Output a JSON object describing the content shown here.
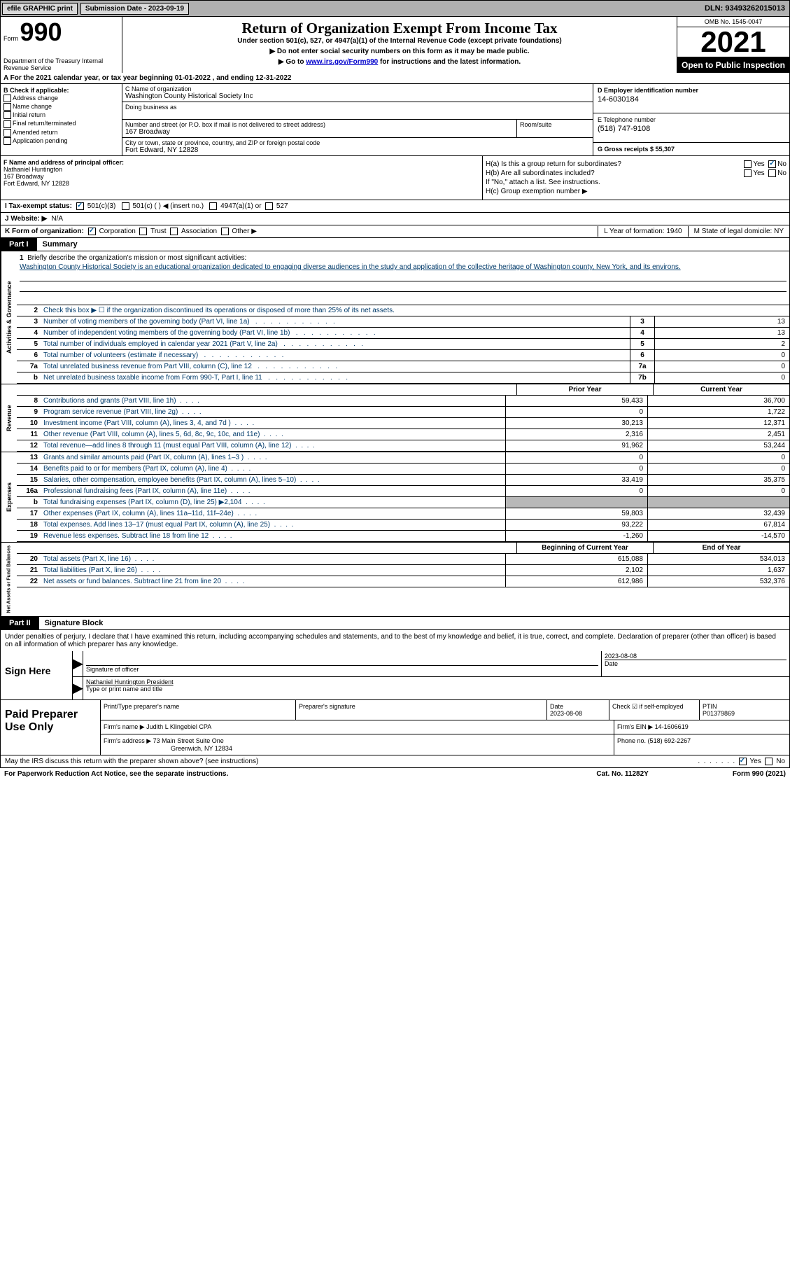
{
  "topbar": {
    "efile": "efile GRAPHIC print",
    "submission_label": "Submission Date - 2023-09-19",
    "dln_label": "DLN: 93493262015013"
  },
  "header": {
    "form_label": "Form",
    "form_number": "990",
    "dept": "Department of the Treasury Internal Revenue Service",
    "title": "Return of Organization Exempt From Income Tax",
    "subtitle": "Under section 501(c), 527, or 4947(a)(1) of the Internal Revenue Code (except private foundations)",
    "note1": "▶ Do not enter social security numbers on this form as it may be made public.",
    "note2_pre": "▶ Go to ",
    "note2_link": "www.irs.gov/Form990",
    "note2_post": " for instructions and the latest information.",
    "omb": "OMB No. 1545-0047",
    "year": "2021",
    "open": "Open to Public Inspection"
  },
  "row_a": "A For the 2021 calendar year, or tax year beginning 01-01-2022   , and ending 12-31-2022",
  "col_b": {
    "title": "B Check if applicable:",
    "items": [
      "Address change",
      "Name change",
      "Initial return",
      "Final return/terminated",
      "Amended return",
      "Application pending"
    ]
  },
  "col_c": {
    "name_label": "C Name of organization",
    "name": "Washington County Historical Society Inc",
    "dba_label": "Doing business as",
    "addr_label": "Number and street (or P.O. box if mail is not delivered to street address)",
    "room_label": "Room/suite",
    "addr": "167 Broadway",
    "city_label": "City or town, state or province, country, and ZIP or foreign postal code",
    "city": "Fort Edward, NY  12828"
  },
  "col_de": {
    "d_label": "D Employer identification number",
    "d_val": "14-6030184",
    "e_label": "E Telephone number",
    "e_val": "(518) 747-9108",
    "g_label": "G Gross receipts $ 55,307"
  },
  "col_f": {
    "label": "F  Name and address of principal officer:",
    "name": "Nathaniel Huntington",
    "addr1": "167 Broadway",
    "addr2": "Fort Edward, NY  12828"
  },
  "col_h": {
    "a": "H(a)  Is this a group return for subordinates?",
    "b": "H(b)  Are all subordinates included?",
    "b_note": "If \"No,\" attach a list. See instructions.",
    "c": "H(c)  Group exemption number ▶"
  },
  "row_i": {
    "label": "I  Tax-exempt status:",
    "o1": "501(c)(3)",
    "o2": "501(c) (  ) ◀ (insert no.)",
    "o3": "4947(a)(1) or",
    "o4": "527"
  },
  "row_j": {
    "label": "J  Website: ▶",
    "val": "N/A"
  },
  "row_k": {
    "label": "K Form of organization:",
    "o1": "Corporation",
    "o2": "Trust",
    "o3": "Association",
    "o4": "Other ▶",
    "l": "L Year of formation: 1940",
    "m": "M State of legal domicile: NY"
  },
  "part1": {
    "tab": "Part I",
    "title": "Summary"
  },
  "mission": {
    "num": "1",
    "label": "Briefly describe the organization's mission or most significant activities:",
    "text": "Washington County Historical Society is an educational organization dedicated to engaging diverse audiences in the study and application of the collective heritage of Washington county, New York, and its environs."
  },
  "line2": {
    "num": "2",
    "text": "Check this box ▶ ☐  if the organization discontinued its operations or disposed of more than 25% of its net assets."
  },
  "gov_rows": [
    {
      "n": "3",
      "d": "Number of voting members of the governing body (Part VI, line 1a)",
      "b": "3",
      "v": "13"
    },
    {
      "n": "4",
      "d": "Number of independent voting members of the governing body (Part VI, line 1b)",
      "b": "4",
      "v": "13"
    },
    {
      "n": "5",
      "d": "Total number of individuals employed in calendar year 2021 (Part V, line 2a)",
      "b": "5",
      "v": "2"
    },
    {
      "n": "6",
      "d": "Total number of volunteers (estimate if necessary)",
      "b": "6",
      "v": "0"
    },
    {
      "n": "7a",
      "d": "Total unrelated business revenue from Part VIII, column (C), line 12",
      "b": "7a",
      "v": "0"
    },
    {
      "n": "b",
      "d": "Net unrelated business taxable income from Form 990-T, Part I, line 11",
      "b": "7b",
      "v": "0"
    }
  ],
  "py_cy_header": {
    "py": "Prior Year",
    "cy": "Current Year"
  },
  "revenue_rows": [
    {
      "n": "8",
      "d": "Contributions and grants (Part VIII, line 1h)",
      "py": "59,433",
      "cy": "36,700"
    },
    {
      "n": "9",
      "d": "Program service revenue (Part VIII, line 2g)",
      "py": "0",
      "cy": "1,722"
    },
    {
      "n": "10",
      "d": "Investment income (Part VIII, column (A), lines 3, 4, and 7d )",
      "py": "30,213",
      "cy": "12,371"
    },
    {
      "n": "11",
      "d": "Other revenue (Part VIII, column (A), lines 5, 6d, 8c, 9c, 10c, and 11e)",
      "py": "2,316",
      "cy": "2,451"
    },
    {
      "n": "12",
      "d": "Total revenue—add lines 8 through 11 (must equal Part VIII, column (A), line 12)",
      "py": "91,962",
      "cy": "53,244"
    }
  ],
  "expense_rows": [
    {
      "n": "13",
      "d": "Grants and similar amounts paid (Part IX, column (A), lines 1–3 )",
      "py": "0",
      "cy": "0"
    },
    {
      "n": "14",
      "d": "Benefits paid to or for members (Part IX, column (A), line 4)",
      "py": "0",
      "cy": "0"
    },
    {
      "n": "15",
      "d": "Salaries, other compensation, employee benefits (Part IX, column (A), lines 5–10)",
      "py": "33,419",
      "cy": "35,375"
    },
    {
      "n": "16a",
      "d": "Professional fundraising fees (Part IX, column (A), line 11e)",
      "py": "0",
      "cy": "0"
    },
    {
      "n": "b",
      "d": "Total fundraising expenses (Part IX, column (D), line 25) ▶2,104",
      "py": "",
      "cy": "",
      "shade": true
    },
    {
      "n": "17",
      "d": "Other expenses (Part IX, column (A), lines 11a–11d, 11f–24e)",
      "py": "59,803",
      "cy": "32,439"
    },
    {
      "n": "18",
      "d": "Total expenses. Add lines 13–17 (must equal Part IX, column (A), line 25)",
      "py": "93,222",
      "cy": "67,814"
    },
    {
      "n": "19",
      "d": "Revenue less expenses. Subtract line 18 from line 12",
      "py": "-1,260",
      "cy": "-14,570"
    }
  ],
  "na_header": {
    "py": "Beginning of Current Year",
    "cy": "End of Year"
  },
  "na_rows": [
    {
      "n": "20",
      "d": "Total assets (Part X, line 16)",
      "py": "615,088",
      "cy": "534,013"
    },
    {
      "n": "21",
      "d": "Total liabilities (Part X, line 26)",
      "py": "2,102",
      "cy": "1,637"
    },
    {
      "n": "22",
      "d": "Net assets or fund balances. Subtract line 21 from line 20",
      "py": "612,986",
      "cy": "532,376"
    }
  ],
  "vert": {
    "gov": "Activities & Governance",
    "rev": "Revenue",
    "exp": "Expenses",
    "na": "Net Assets or Fund Balances"
  },
  "part2": {
    "tab": "Part II",
    "title": "Signature Block"
  },
  "sig_text": "Under penalties of perjury, I declare that I have examined this return, including accompanying schedules and statements, and to the best of my knowledge and belief, it is true, correct, and complete. Declaration of preparer (other than officer) is based on all information of which preparer has any knowledge.",
  "sign": {
    "label": "Sign Here",
    "sig_label": "Signature of officer",
    "date": "2023-08-08",
    "date_label": "Date",
    "name": "Nathaniel Huntington  President",
    "name_label": "Type or print name and title"
  },
  "prep": {
    "label": "Paid Preparer Use Only",
    "h1": "Print/Type preparer's name",
    "h2": "Preparer's signature",
    "h3": "Date",
    "h3v": "2023-08-08",
    "h4": "Check ☑ if self-employed",
    "h5": "PTIN",
    "h5v": "P01379869",
    "firm_label": "Firm's name    ▶",
    "firm": "Judith L Klingebiel CPA",
    "ein_label": "Firm's EIN ▶",
    "ein": "14-1606619",
    "addr_label": "Firm's address ▶",
    "addr1": "73 Main Street Suite One",
    "addr2": "Greenwich, NY  12834",
    "phone_label": "Phone no.",
    "phone": "(518) 692-2267"
  },
  "footer": {
    "discuss": "May the IRS discuss this return with the preparer shown above? (see instructions)",
    "yes": "Yes",
    "no": "No",
    "paperwork": "For Paperwork Reduction Act Notice, see the separate instructions.",
    "cat": "Cat. No. 11282Y",
    "form": "Form 990 (2021)"
  }
}
